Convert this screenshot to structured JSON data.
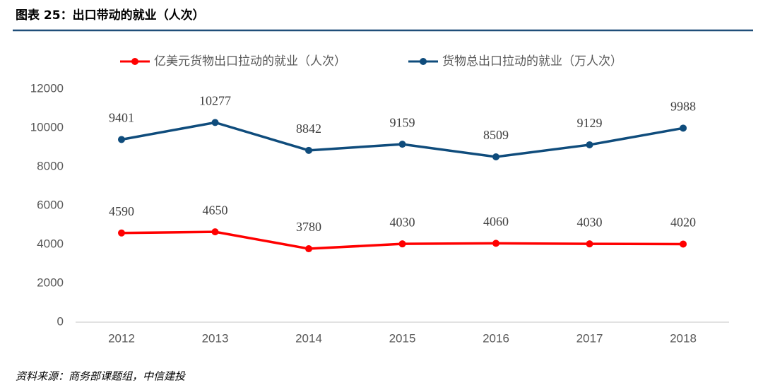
{
  "header": {
    "title": "图表 25：出口带动的就业（人次）"
  },
  "chart_data": {
    "type": "line",
    "categories": [
      "2012",
      "2013",
      "2014",
      "2015",
      "2016",
      "2017",
      "2018"
    ],
    "series": [
      {
        "name": "亿美元货物出口拉动的就业（人次）",
        "color": "#ff0000",
        "values": [
          4590,
          4650,
          3780,
          4030,
          4060,
          4030,
          4020
        ]
      },
      {
        "name": "货物总出口拉动的就业（万人次）",
        "color": "#0f4c7c",
        "values": [
          9401,
          10277,
          8842,
          9159,
          8509,
          9129,
          9988
        ]
      }
    ],
    "ylim": [
      0,
      12000
    ],
    "yticks": [
      0,
      2000,
      4000,
      6000,
      8000,
      10000,
      12000
    ],
    "grid": false
  },
  "footer": {
    "source": "资料来源：商务部课题组，中信建投"
  }
}
